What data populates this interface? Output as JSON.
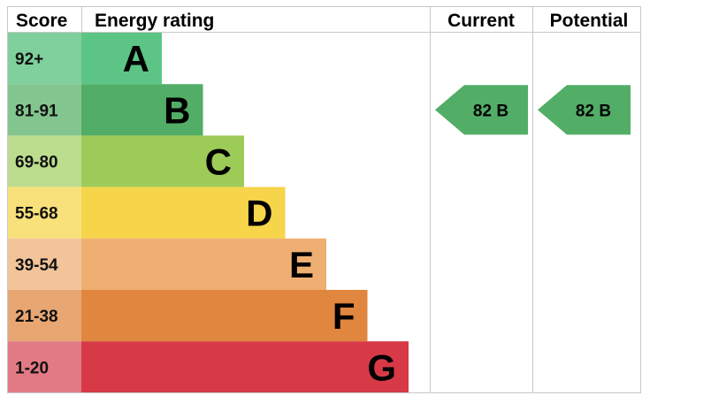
{
  "headers": {
    "score": "Score",
    "energy_rating": "Energy rating",
    "current": "Current",
    "potential": "Potential"
  },
  "chart_data": {
    "type": "bar",
    "bands": [
      {
        "score": "92+",
        "letter": "A",
        "color": "#5CC585",
        "score_bg": "#7FD09C"
      },
      {
        "score": "81-91",
        "letter": "B",
        "color": "#52AD66",
        "score_bg": "#83C58F"
      },
      {
        "score": "69-80",
        "letter": "C",
        "color": "#9DCB57",
        "score_bg": "#BCDD8E"
      },
      {
        "score": "55-68",
        "letter": "D",
        "color": "#F6D54B",
        "score_bg": "#F8E17A"
      },
      {
        "score": "39-54",
        "letter": "E",
        "color": "#EFAF72",
        "score_bg": "#F3C49A"
      },
      {
        "score": "21-38",
        "letter": "F",
        "color": "#E0863E",
        "score_bg": "#E8A673"
      },
      {
        "score": "1-20",
        "letter": "G",
        "color": "#D73A46",
        "score_bg": "#E27A85"
      }
    ],
    "current": {
      "value": 82,
      "letter": "B",
      "label": "82  B",
      "color": "#52AD66"
    },
    "potential": {
      "value": 82,
      "letter": "B",
      "label": "82  B",
      "color": "#52AD66"
    }
  }
}
